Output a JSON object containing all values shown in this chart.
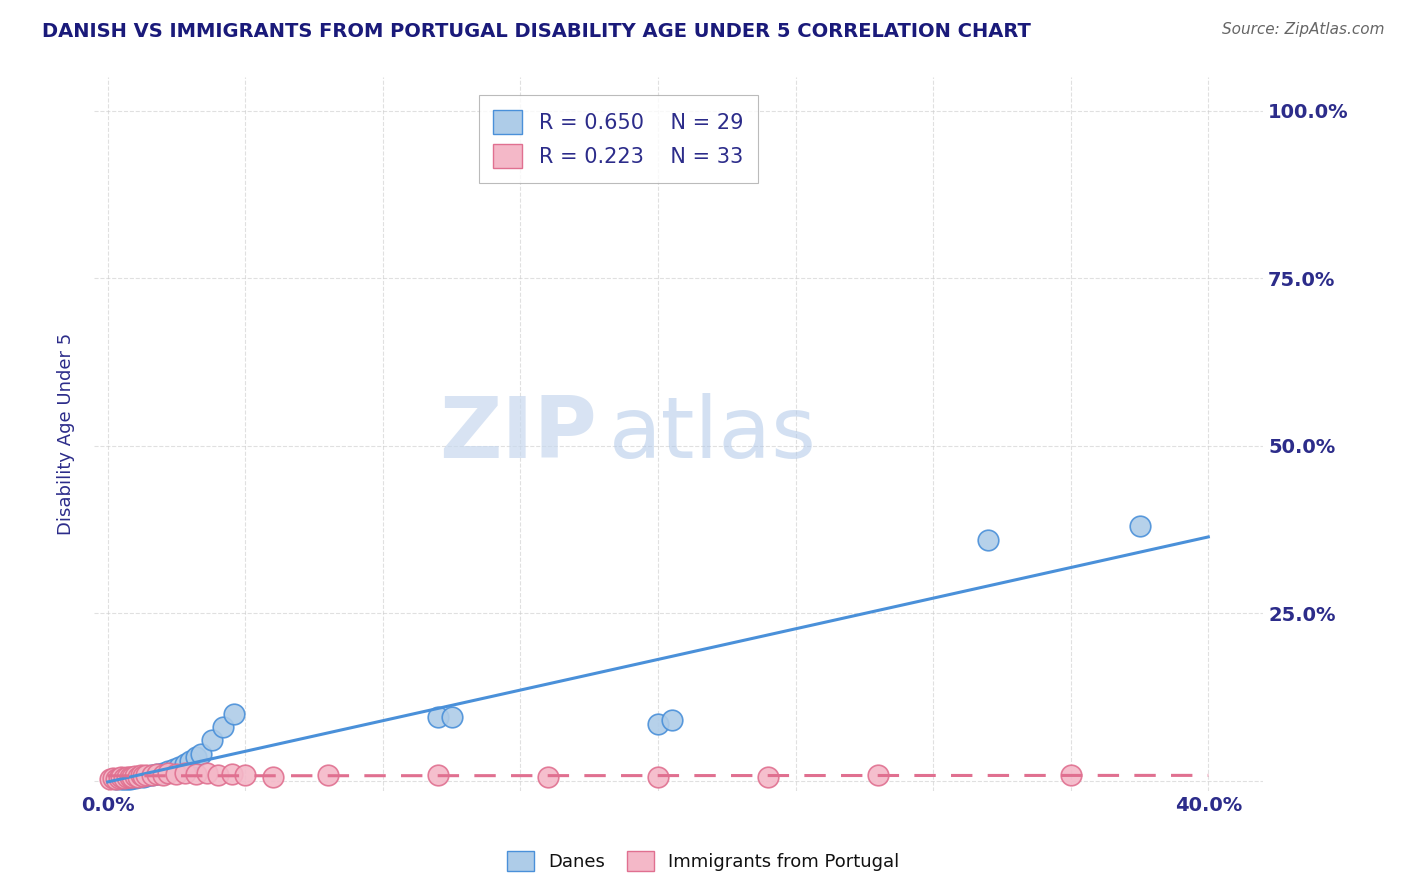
{
  "title": "DANISH VS IMMIGRANTS FROM PORTUGAL DISABILITY AGE UNDER 5 CORRELATION CHART",
  "source": "Source: ZipAtlas.com",
  "ylabel_label": "Disability Age Under 5",
  "danes_R": 0.65,
  "danes_N": 29,
  "portugal_R": 0.223,
  "portugal_N": 33,
  "danes_color": "#aecce8",
  "danes_line_color": "#4a90d9",
  "portugal_color": "#f4b8c8",
  "portugal_line_color": "#e07090",
  "title_color": "#1a1a7a",
  "legend_text_color": "#2c2c8a",
  "axis_color": "#2c2c8a",
  "watermark_zip": "ZIP",
  "watermark_atlas": "atlas",
  "background_color": "#ffffff",
  "grid_color": "#cccccc",
  "danes_x": [
    0.003,
    0.005,
    0.006,
    0.007,
    0.008,
    0.009,
    0.01,
    0.011,
    0.013,
    0.014,
    0.016,
    0.018,
    0.02,
    0.022,
    0.024,
    0.026,
    0.028,
    0.03,
    0.032,
    0.034,
    0.038,
    0.042,
    0.046,
    0.12,
    0.125,
    0.2,
    0.205,
    0.32,
    0.375
  ],
  "danes_y": [
    0.002,
    0.002,
    0.003,
    0.003,
    0.003,
    0.004,
    0.004,
    0.005,
    0.006,
    0.007,
    0.008,
    0.01,
    0.012,
    0.015,
    0.018,
    0.02,
    0.025,
    0.03,
    0.035,
    0.04,
    0.06,
    0.08,
    0.1,
    0.095,
    0.095,
    0.085,
    0.09,
    0.36,
    0.38
  ],
  "portugal_x": [
    0.001,
    0.002,
    0.003,
    0.004,
    0.005,
    0.006,
    0.007,
    0.008,
    0.009,
    0.01,
    0.011,
    0.012,
    0.013,
    0.014,
    0.016,
    0.018,
    0.02,
    0.022,
    0.025,
    0.028,
    0.032,
    0.036,
    0.04,
    0.045,
    0.05,
    0.06,
    0.08,
    0.12,
    0.16,
    0.2,
    0.24,
    0.28,
    0.35
  ],
  "portugal_y": [
    0.003,
    0.004,
    0.003,
    0.004,
    0.005,
    0.004,
    0.006,
    0.005,
    0.006,
    0.007,
    0.006,
    0.008,
    0.007,
    0.009,
    0.008,
    0.01,
    0.009,
    0.012,
    0.01,
    0.012,
    0.01,
    0.012,
    0.008,
    0.01,
    0.008,
    0.006,
    0.008,
    0.008,
    0.006,
    0.006,
    0.006,
    0.008,
    0.008
  ],
  "xlim": [
    -0.005,
    0.42
  ],
  "ylim": [
    -0.015,
    1.05
  ],
  "x_tick_positions": [
    0.0,
    0.05,
    0.1,
    0.15,
    0.2,
    0.25,
    0.3,
    0.35,
    0.4
  ],
  "x_tick_labels": [
    "0.0%",
    "",
    "",
    "",
    "",
    "",
    "",
    "",
    "40.0%"
  ],
  "y_tick_positions": [
    0.0,
    0.25,
    0.5,
    0.75,
    1.0
  ],
  "y_tick_labels_right": [
    "",
    "25.0%",
    "50.0%",
    "75.0%",
    "100.0%"
  ]
}
